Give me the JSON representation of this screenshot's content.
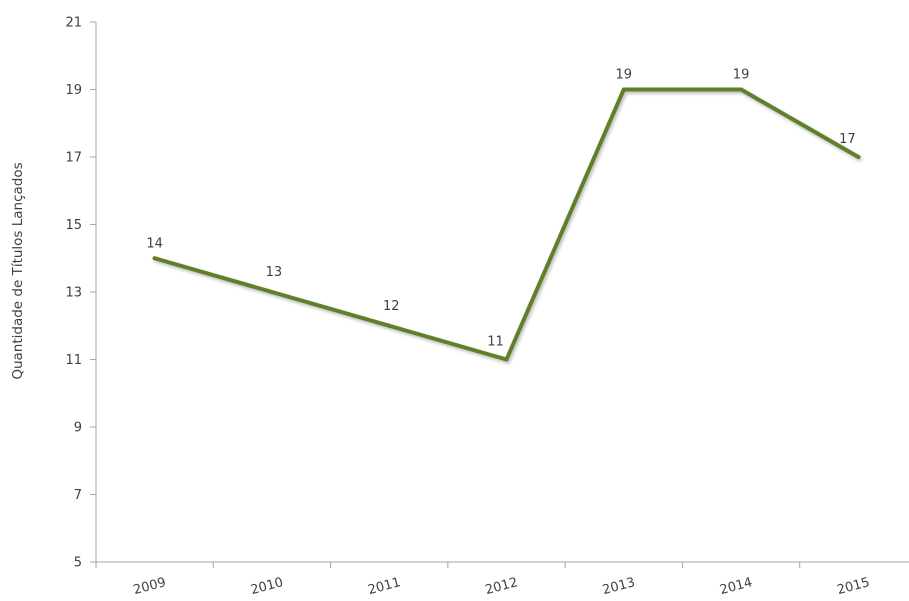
{
  "chart_data": {
    "type": "line",
    "title": "",
    "xlabel": "",
    "ylabel": "Quantidade de Títulos Lançados",
    "categories": [
      "2009",
      "2010",
      "2011",
      "2012",
      "2013",
      "2014",
      "2015"
    ],
    "series": [
      {
        "values": [
          14,
          13,
          12,
          11,
          19,
          19,
          17
        ],
        "color": "#5f7f2a"
      }
    ],
    "ylim": [
      5,
      21
    ],
    "yticks": [
      5,
      7,
      9,
      11,
      13,
      15,
      17,
      19,
      21
    ],
    "grid": false,
    "legend": "none"
  }
}
